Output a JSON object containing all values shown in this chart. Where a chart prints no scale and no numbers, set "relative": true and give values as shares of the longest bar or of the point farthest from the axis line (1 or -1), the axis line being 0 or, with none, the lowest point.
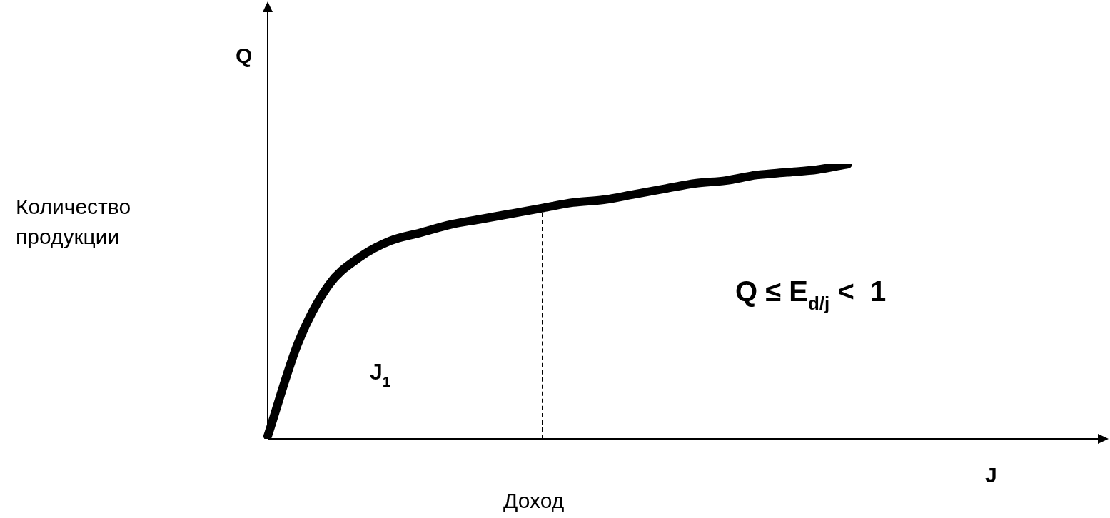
{
  "chart_data": {
    "type": "line",
    "relative": true,
    "xlabel": "Доход",
    "categories": [
      null,
      null,
      null,
      null,
      null,
      null,
      null,
      null,
      null,
      null,
      null,
      null,
      null,
      null,
      null,
      null,
      null,
      null,
      null,
      null,
      null,
      null,
      null,
      null,
      null,
      null,
      null,
      null
    ],
    "series": [
      {
        "color": "#000000",
        "values": [
          0.01,
          0.35,
          0.56,
          0.66,
          0.72,
          0.75,
          0.78,
          0.8,
          0.82,
          0.84,
          0.86,
          0.87,
          0.89,
          0.91,
          0.93,
          0.94,
          0.96,
          0.97,
          0.98,
          1.0,
          null,
          null,
          null,
          null,
          null,
          null,
          null,
          null
        ]
      }
    ],
    "annotations": [
      "Q",
      "J",
      "J$_{1}$",
      "Q ≤ E$_{d/j}$ <  1",
      "Количество продукции"
    ],
    "legend": false
  }
}
